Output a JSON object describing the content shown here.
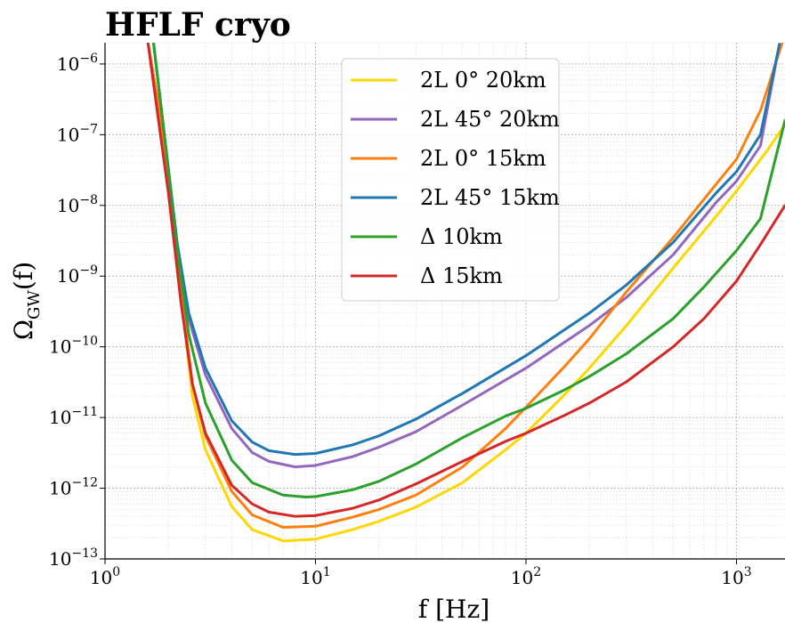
{
  "chart_data": {
    "type": "line",
    "title": "HFLF cryo",
    "xlabel": "f [Hz]",
    "ylabel": "Ω_GW(f)",
    "x_scale": "log",
    "y_scale": "log",
    "xlim": [
      1,
      1700
    ],
    "ylim": [
      1e-13,
      2e-06
    ],
    "grid": true,
    "legend_position": "top-center",
    "x_ticks": [
      {
        "value": 1,
        "base": "10",
        "exp": "0"
      },
      {
        "value": 10,
        "base": "10",
        "exp": "1"
      },
      {
        "value": 100,
        "base": "10",
        "exp": "2"
      },
      {
        "value": 1000,
        "base": "10",
        "exp": "3"
      }
    ],
    "y_ticks": [
      {
        "value": 1e-13,
        "base": "10",
        "exp": "−13"
      },
      {
        "value": 1e-12,
        "base": "10",
        "exp": "−12"
      },
      {
        "value": 1e-11,
        "base": "10",
        "exp": "−11"
      },
      {
        "value": 1e-10,
        "base": "10",
        "exp": "−10"
      },
      {
        "value": 1e-09,
        "base": "10",
        "exp": "−9"
      },
      {
        "value": 1e-08,
        "base": "10",
        "exp": "−8"
      },
      {
        "value": 1e-07,
        "base": "10",
        "exp": "−7"
      },
      {
        "value": 1e-06,
        "base": "10",
        "exp": "−6"
      }
    ],
    "series": [
      {
        "name": "2L 0° 20km",
        "color": "#FFD700",
        "x": [
          1.6,
          1.8,
          2.0,
          2.3,
          2.6,
          3.0,
          4.0,
          5.0,
          7.0,
          10,
          15,
          20,
          30,
          50,
          80,
          100,
          150,
          200,
          300,
          500,
          800,
          1000,
          1400,
          1700
        ],
        "y": [
          2e-06,
          2.5e-07,
          2e-08,
          5e-10,
          2e-11,
          3.5e-12,
          5.5e-13,
          2.6e-13,
          1.8e-13,
          1.9e-13,
          2.6e-13,
          3.4e-13,
          5.4e-13,
          1.2e-12,
          3.5e-12,
          6e-12,
          2e-11,
          5e-11,
          2e-10,
          1.3e-09,
          7e-09,
          1.6e-08,
          6e-08,
          1.4e-07
        ]
      },
      {
        "name": "2L 45° 20km",
        "color": "#9467BD",
        "x": [
          1.7,
          1.9,
          2.2,
          2.5,
          3.0,
          4.0,
          5.0,
          6.0,
          8.0,
          10,
          15,
          20,
          30,
          50,
          100,
          200,
          300,
          500,
          800,
          1000,
          1300,
          1600
        ],
        "y": [
          2e-06,
          1.2e-07,
          3e-09,
          2.5e-10,
          4e-11,
          7e-12,
          3.2e-12,
          2.4e-12,
          2e-12,
          2.1e-12,
          2.8e-12,
          3.8e-12,
          6.3e-12,
          1.5e-11,
          5e-11,
          2e-10,
          5e-10,
          2e-09,
          1.1e-08,
          2.2e-08,
          7e-08,
          1.9e-06
        ]
      },
      {
        "name": "2L 0° 15km",
        "color": "#FF7F0E",
        "x": [
          1.6,
          1.8,
          2.0,
          2.3,
          2.6,
          3.0,
          4.0,
          5.0,
          7.0,
          10,
          15,
          20,
          30,
          50,
          80,
          100,
          150,
          200,
          300,
          500,
          800,
          1000,
          1300,
          1650
        ],
        "y": [
          2e-06,
          2.5e-07,
          2e-08,
          6e-10,
          3e-11,
          5.5e-12,
          9e-13,
          4.2e-13,
          2.8e-13,
          2.9e-13,
          3.9e-13,
          5e-13,
          8e-13,
          2e-12,
          7e-12,
          1.4e-11,
          5e-11,
          1.3e-10,
          6e-10,
          3.5e-09,
          2e-08,
          4.5e-08,
          2.2e-07,
          2e-06
        ]
      },
      {
        "name": "2L 45° 15km",
        "color": "#1F77B4",
        "x": [
          1.7,
          1.9,
          2.2,
          2.5,
          3.0,
          4.0,
          5.0,
          6.0,
          8.0,
          10,
          15,
          20,
          30,
          50,
          100,
          200,
          300,
          500,
          800,
          1000,
          1300,
          1600
        ],
        "y": [
          2e-06,
          1.2e-07,
          3e-09,
          3e-10,
          5e-11,
          9e-12,
          4.5e-12,
          3.4e-12,
          3e-12,
          3.1e-12,
          4.1e-12,
          5.5e-12,
          9.5e-12,
          2.2e-11,
          7.5e-11,
          3e-10,
          7.5e-10,
          3e-09,
          1.5e-08,
          3e-08,
          1e-07,
          1.9e-06
        ]
      },
      {
        "name": "Δ 10km",
        "color": "#2CA02C",
        "x": [
          1.7,
          1.9,
          2.2,
          2.5,
          3.0,
          4.0,
          5.0,
          7.0,
          9.0,
          10,
          15,
          20,
          30,
          50,
          80,
          100,
          150,
          200,
          300,
          500,
          700,
          1000,
          1300,
          1700
        ],
        "y": [
          2e-06,
          1.2e-07,
          2.5e-09,
          1.5e-10,
          1.6e-11,
          2.5e-12,
          1.2e-12,
          8e-13,
          7.5e-13,
          7.6e-13,
          9.5e-13,
          1.25e-12,
          2.2e-12,
          5.2e-12,
          1.05e-11,
          1.35e-11,
          2.4e-11,
          3.8e-11,
          8e-11,
          2.5e-10,
          7e-10,
          2.3e-09,
          6.5e-09,
          1.6e-07
        ]
      },
      {
        "name": "Δ 15km",
        "color": "#D62728",
        "x": [
          1.6,
          1.8,
          2.0,
          2.3,
          2.6,
          3.0,
          4.0,
          5.0,
          6.0,
          8.0,
          10,
          15,
          20,
          30,
          50,
          80,
          100,
          150,
          200,
          300,
          500,
          700,
          1000,
          1300,
          1700
        ],
        "y": [
          2e-06,
          1.5e-07,
          1.5e-08,
          4e-10,
          3e-11,
          6e-12,
          1.1e-12,
          6e-13,
          4.6e-13,
          4e-13,
          4.1e-13,
          5.2e-13,
          6.8e-13,
          1.15e-12,
          2.4e-12,
          4.6e-12,
          6e-12,
          1.05e-11,
          1.6e-11,
          3.2e-11,
          1e-10,
          2.5e-10,
          8.5e-10,
          2.8e-09,
          1e-08
        ]
      }
    ]
  }
}
